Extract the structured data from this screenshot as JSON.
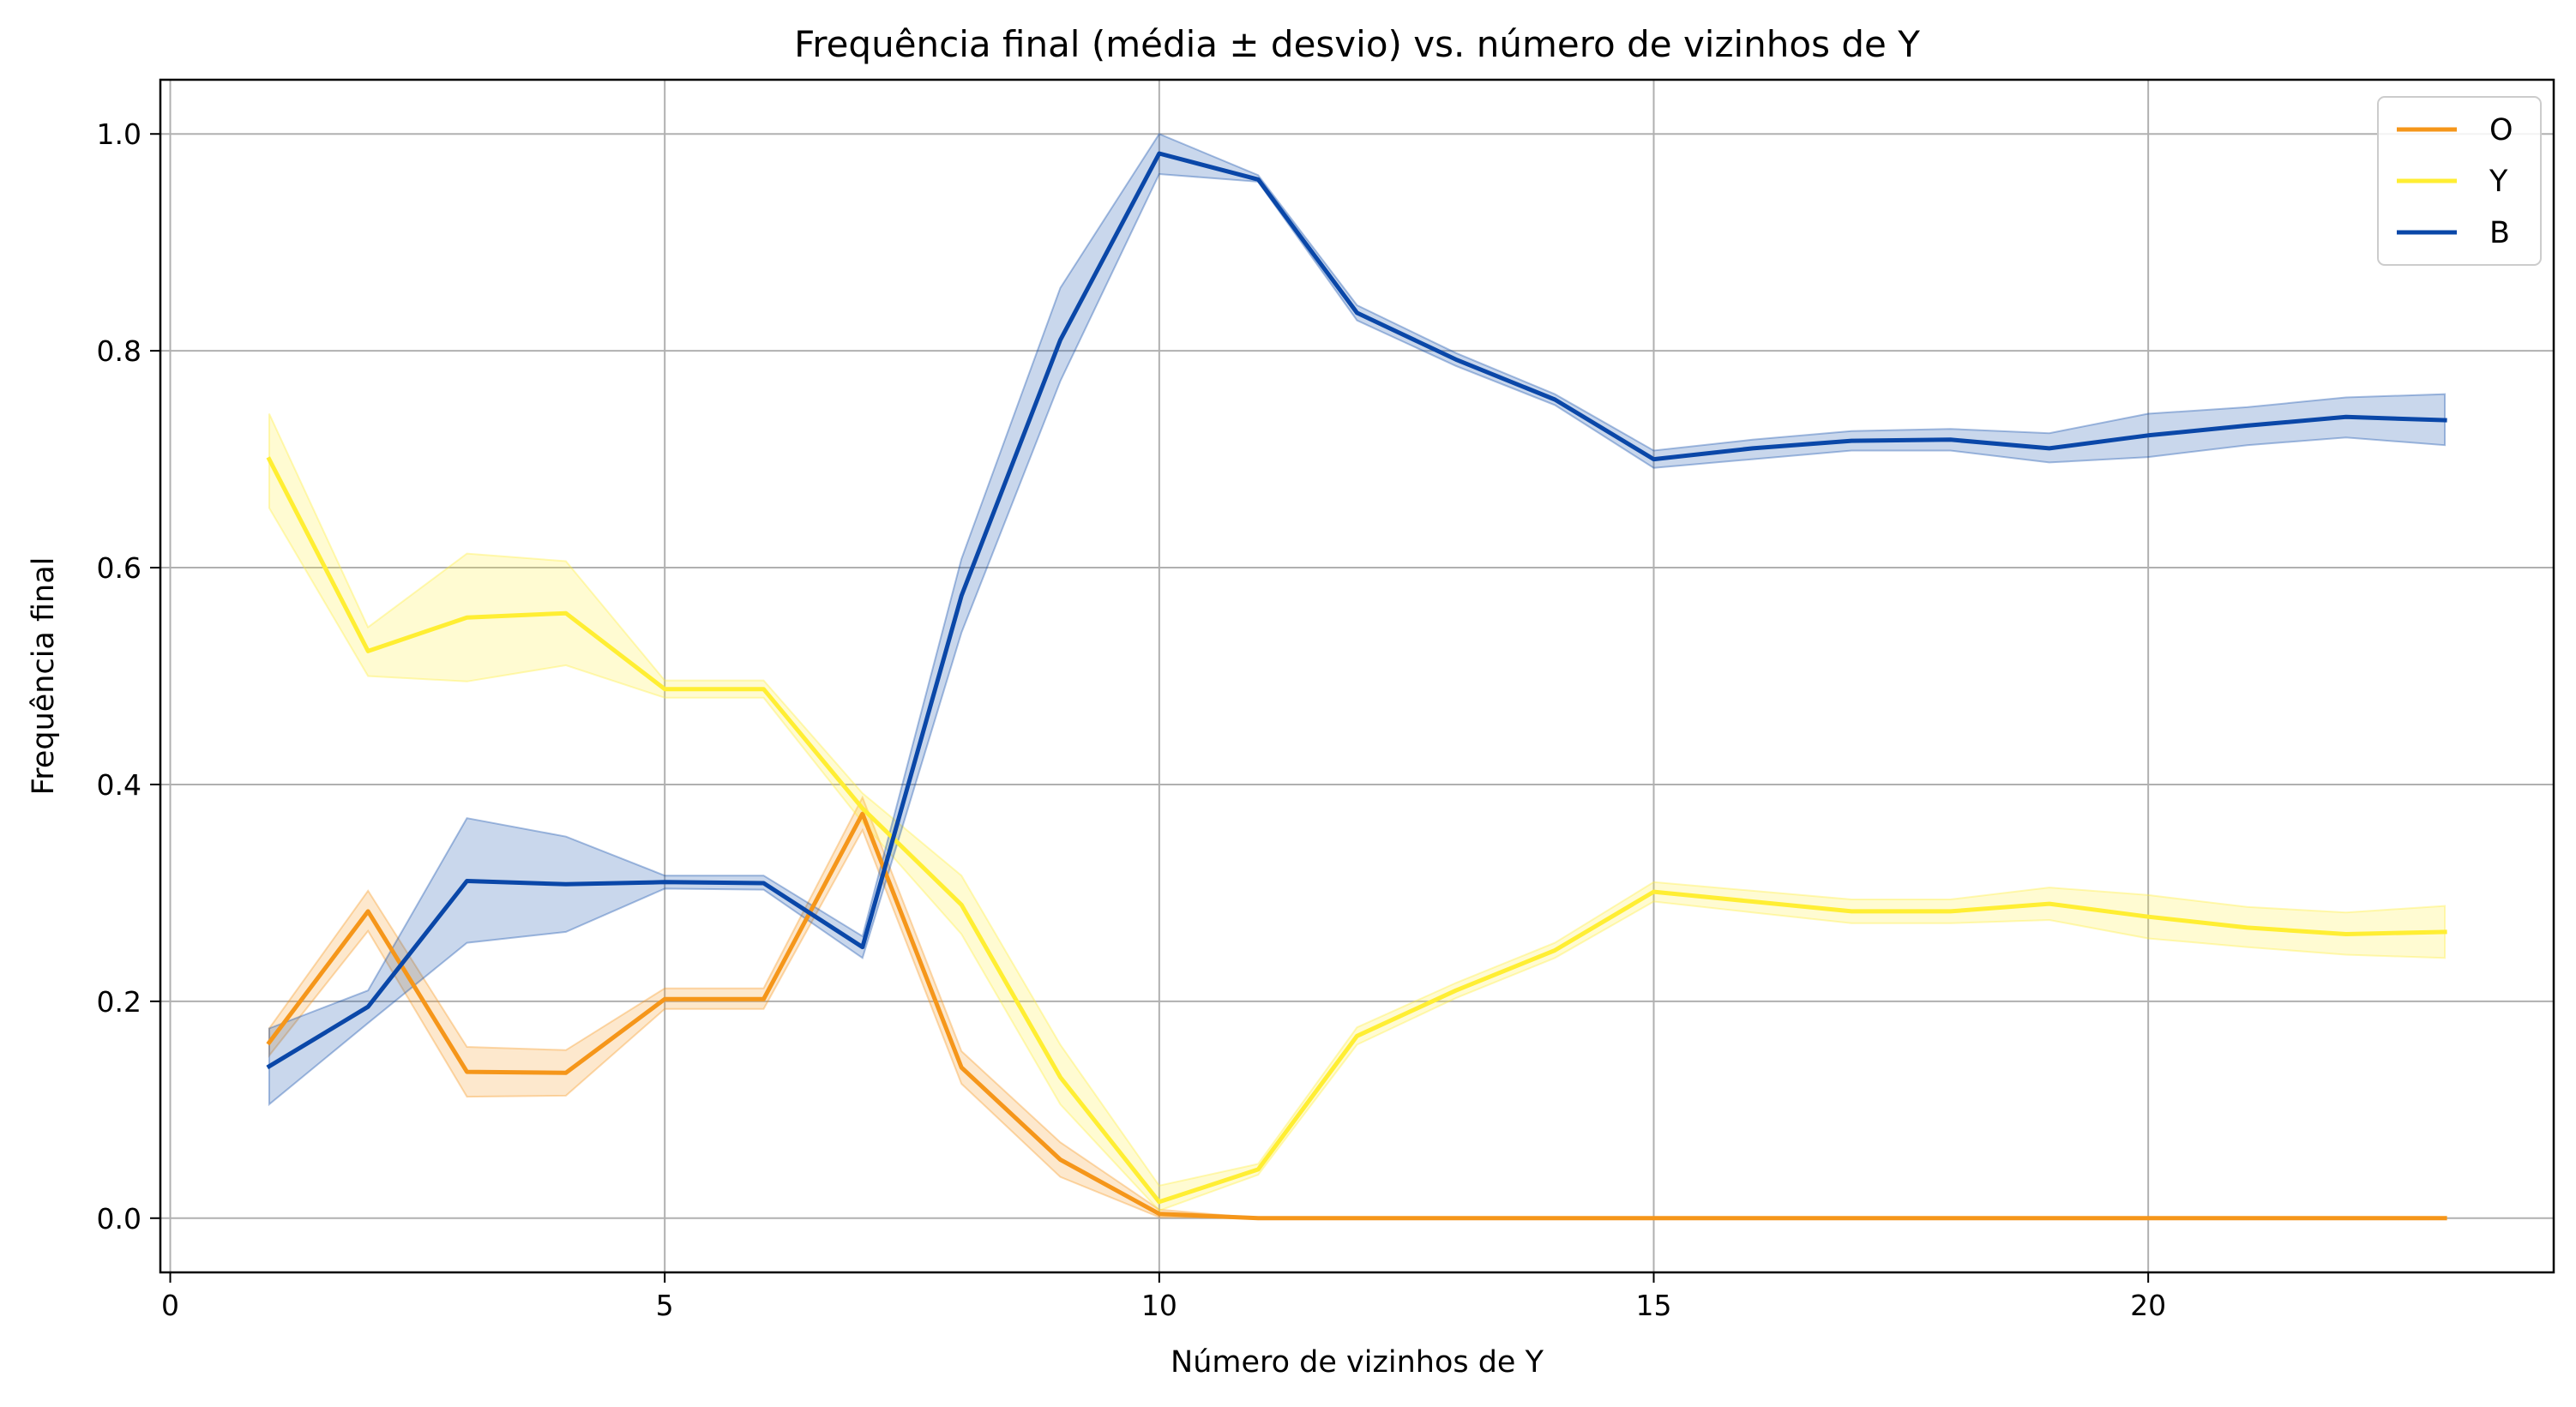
{
  "chart_data": {
    "type": "line",
    "title": "Frequência final (média ± desvio) vs. número de vizinhos de Y",
    "xlabel": "Número de vizinhos de Y",
    "ylabel": "Frequência final",
    "xlim": [
      -0.1,
      24.1
    ],
    "ylim": [
      -0.05,
      1.05
    ],
    "xticks": [
      0,
      5,
      10,
      15,
      20
    ],
    "yticks": [
      0.0,
      0.2,
      0.4,
      0.6,
      0.8,
      1.0
    ],
    "xtick_labels": [
      "0",
      "5",
      "10",
      "15",
      "20"
    ],
    "ytick_labels": [
      "0.0",
      "0.2",
      "0.4",
      "0.6",
      "0.8",
      "1.0"
    ],
    "grid": true,
    "legend_position": "top-right",
    "x": [
      1,
      2,
      3,
      4,
      5,
      6,
      7,
      8,
      9,
      10,
      11,
      12,
      13,
      14,
      15,
      16,
      17,
      18,
      19,
      20,
      21,
      22,
      23
    ],
    "series": [
      {
        "name": "O",
        "color": "#f5961a",
        "values": [
          0.162,
          0.283,
          0.135,
          0.134,
          0.202,
          0.202,
          0.373,
          0.139,
          0.054,
          0.004,
          0.0,
          0.0,
          0.0,
          0.0,
          0.0,
          0.0,
          0.0,
          0.0,
          0.0,
          0.0,
          0.0,
          0.0,
          0.0
        ],
        "lower": [
          0.15,
          0.265,
          0.112,
          0.113,
          0.193,
          0.193,
          0.358,
          0.124,
          0.038,
          0.001,
          0.0,
          0.0,
          0.0,
          0.0,
          0.0,
          0.0,
          0.0,
          0.0,
          0.0,
          0.0,
          0.0,
          0.0,
          0.0
        ],
        "upper": [
          0.175,
          0.302,
          0.158,
          0.155,
          0.212,
          0.212,
          0.388,
          0.154,
          0.07,
          0.008,
          0.0,
          0.0,
          0.0,
          0.0,
          0.0,
          0.0,
          0.0,
          0.0,
          0.0,
          0.0,
          0.0,
          0.0,
          0.0
        ]
      },
      {
        "name": "Y",
        "color": "#ffee33",
        "values": [
          0.7,
          0.523,
          0.554,
          0.558,
          0.488,
          0.488,
          0.378,
          0.289,
          0.13,
          0.015,
          0.045,
          0.168,
          0.21,
          0.247,
          0.301,
          0.292,
          0.283,
          0.283,
          0.29,
          0.278,
          0.268,
          0.262,
          0.264
        ],
        "lower": [
          0.655,
          0.5,
          0.495,
          0.51,
          0.48,
          0.48,
          0.365,
          0.262,
          0.105,
          0.007,
          0.04,
          0.16,
          0.203,
          0.24,
          0.292,
          0.282,
          0.272,
          0.272,
          0.275,
          0.258,
          0.25,
          0.243,
          0.24
        ],
        "upper": [
          0.742,
          0.545,
          0.613,
          0.606,
          0.496,
          0.496,
          0.392,
          0.316,
          0.16,
          0.03,
          0.05,
          0.176,
          0.217,
          0.254,
          0.31,
          0.302,
          0.294,
          0.294,
          0.305,
          0.298,
          0.287,
          0.282,
          0.288
        ]
      },
      {
        "name": "B",
        "color": "#0a47a8",
        "values": [
          0.14,
          0.195,
          0.311,
          0.308,
          0.31,
          0.309,
          0.25,
          0.574,
          0.81,
          0.982,
          0.958,
          0.835,
          0.792,
          0.755,
          0.7,
          0.71,
          0.717,
          0.718,
          0.71,
          0.722,
          0.731,
          0.739,
          0.736
        ],
        "lower": [
          0.105,
          0.18,
          0.254,
          0.264,
          0.304,
          0.303,
          0.24,
          0.54,
          0.772,
          0.963,
          0.956,
          0.828,
          0.786,
          0.75,
          0.692,
          0.7,
          0.708,
          0.708,
          0.697,
          0.702,
          0.713,
          0.72,
          0.713
        ],
        "upper": [
          0.175,
          0.21,
          0.369,
          0.352,
          0.316,
          0.316,
          0.26,
          0.608,
          0.858,
          1.0,
          0.962,
          0.842,
          0.798,
          0.76,
          0.708,
          0.718,
          0.726,
          0.728,
          0.724,
          0.742,
          0.748,
          0.757,
          0.76
        ]
      }
    ]
  }
}
